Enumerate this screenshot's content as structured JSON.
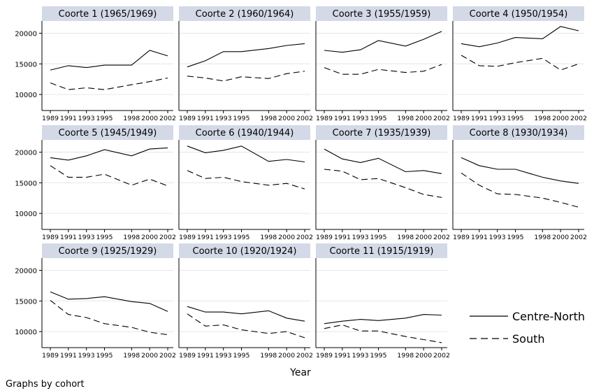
{
  "chart_data": {
    "type": "line",
    "xlabel": "Year",
    "footnote": "Graphs by cohort",
    "x": [
      1989,
      1991,
      1993,
      1995,
      1998,
      2000,
      2002
    ],
    "xtick_labels": [
      "1989",
      "1991",
      "1993",
      "1995",
      "1998",
      "2000",
      "2002"
    ],
    "ylim": [
      7500,
      22000
    ],
    "yticks": [
      10000,
      15000,
      20000
    ],
    "ytick_labels": [
      "10000",
      "15000",
      "20000"
    ],
    "legend": {
      "placement": "bottom-right",
      "entries": [
        {
          "label": "Centre-North",
          "style": "solid"
        },
        {
          "label": "South",
          "style": "dashed"
        }
      ]
    },
    "colors": {
      "panel_header": "#d3d9e6",
      "line": "#000000",
      "grid": "#e6e6e6"
    },
    "panels": [
      {
        "title": "Coorte 1 (1965/1969)",
        "series": [
          {
            "name": "Centre-North",
            "values": [
              14000,
              14700,
              14400,
              14800,
              14800,
              17200,
              16300
            ]
          },
          {
            "name": "South",
            "values": [
              11900,
              10800,
              11100,
              10800,
              11600,
              12100,
              12700
            ]
          }
        ]
      },
      {
        "title": "Coorte 2 (1960/1964)",
        "series": [
          {
            "name": "Centre-North",
            "values": [
              14500,
              15500,
              17000,
              17000,
              17500,
              18000,
              18300
            ]
          },
          {
            "name": "South",
            "values": [
              13000,
              12700,
              12200,
              12900,
              12600,
              13400,
              13800
            ]
          }
        ]
      },
      {
        "title": "Coorte 3 (1955/1959)",
        "series": [
          {
            "name": "Centre-North",
            "values": [
              17200,
              16900,
              17300,
              18800,
              17900,
              19000,
              20300
            ]
          },
          {
            "name": "South",
            "values": [
              14400,
              13300,
              13300,
              14100,
              13600,
              13800,
              14900
            ]
          }
        ]
      },
      {
        "title": "Coorte 4 (1950/1954)",
        "series": [
          {
            "name": "Centre-North",
            "values": [
              18300,
              17800,
              18400,
              19300,
              19100,
              21100,
              20400
            ]
          },
          {
            "name": "South",
            "values": [
              16400,
              14700,
              14600,
              15200,
              15900,
              14000,
              15000
            ]
          }
        ]
      },
      {
        "title": "Coorte 5 (1945/1949)",
        "series": [
          {
            "name": "Centre-North",
            "values": [
              19100,
              18700,
              19400,
              20400,
              19400,
              20500,
              20700
            ]
          },
          {
            "name": "South",
            "values": [
              17800,
              15900,
              15900,
              16400,
              14600,
              15600,
              14500
            ]
          }
        ]
      },
      {
        "title": "Coorte 6 (1940/1944)",
        "series": [
          {
            "name": "Centre-North",
            "values": [
              21000,
              19900,
              20300,
              21000,
              18500,
              18800,
              18400
            ]
          },
          {
            "name": "South",
            "values": [
              17000,
              15700,
              15900,
              15200,
              14600,
              14900,
              14000
            ]
          }
        ]
      },
      {
        "title": "Coorte 7 (1935/1939)",
        "series": [
          {
            "name": "Centre-North",
            "values": [
              20500,
              18900,
              18300,
              19000,
              16800,
              17000,
              16500
            ]
          },
          {
            "name": "South",
            "values": [
              17200,
              16900,
              15500,
              15700,
              14200,
              13100,
              12600
            ]
          }
        ]
      },
      {
        "title": "Coorte 8 (1930/1934)",
        "series": [
          {
            "name": "Centre-North",
            "values": [
              19100,
              17800,
              17200,
              17200,
              15900,
              15300,
              14900
            ]
          },
          {
            "name": "South",
            "values": [
              16600,
              14600,
              13200,
              13100,
              12500,
              11800,
              11000
            ]
          }
        ]
      },
      {
        "title": "Coorte 9 (1925/1929)",
        "series": [
          {
            "name": "Centre-North",
            "values": [
              16500,
              15300,
              15400,
              15700,
              14900,
              14600,
              13300
            ]
          },
          {
            "name": "South",
            "values": [
              15100,
              12800,
              12300,
              11300,
              10700,
              9900,
              9500
            ]
          }
        ]
      },
      {
        "title": "Coorte 10 (1920/1924)",
        "series": [
          {
            "name": "Centre-North",
            "values": [
              14100,
              13200,
              13200,
              12900,
              13400,
              12200,
              11700
            ]
          },
          {
            "name": "South",
            "values": [
              12900,
              10900,
              11100,
              10300,
              9700,
              10000,
              9000
            ]
          }
        ]
      },
      {
        "title": "Coorte 11 (1915/1919)",
        "series": [
          {
            "name": "Centre-North",
            "values": [
              11300,
              11700,
              12000,
              11800,
              12200,
              12800,
              12700
            ]
          },
          {
            "name": "South",
            "values": [
              10500,
              11100,
              10100,
              10100,
              9200,
              8700,
              8200
            ]
          }
        ]
      }
    ]
  }
}
